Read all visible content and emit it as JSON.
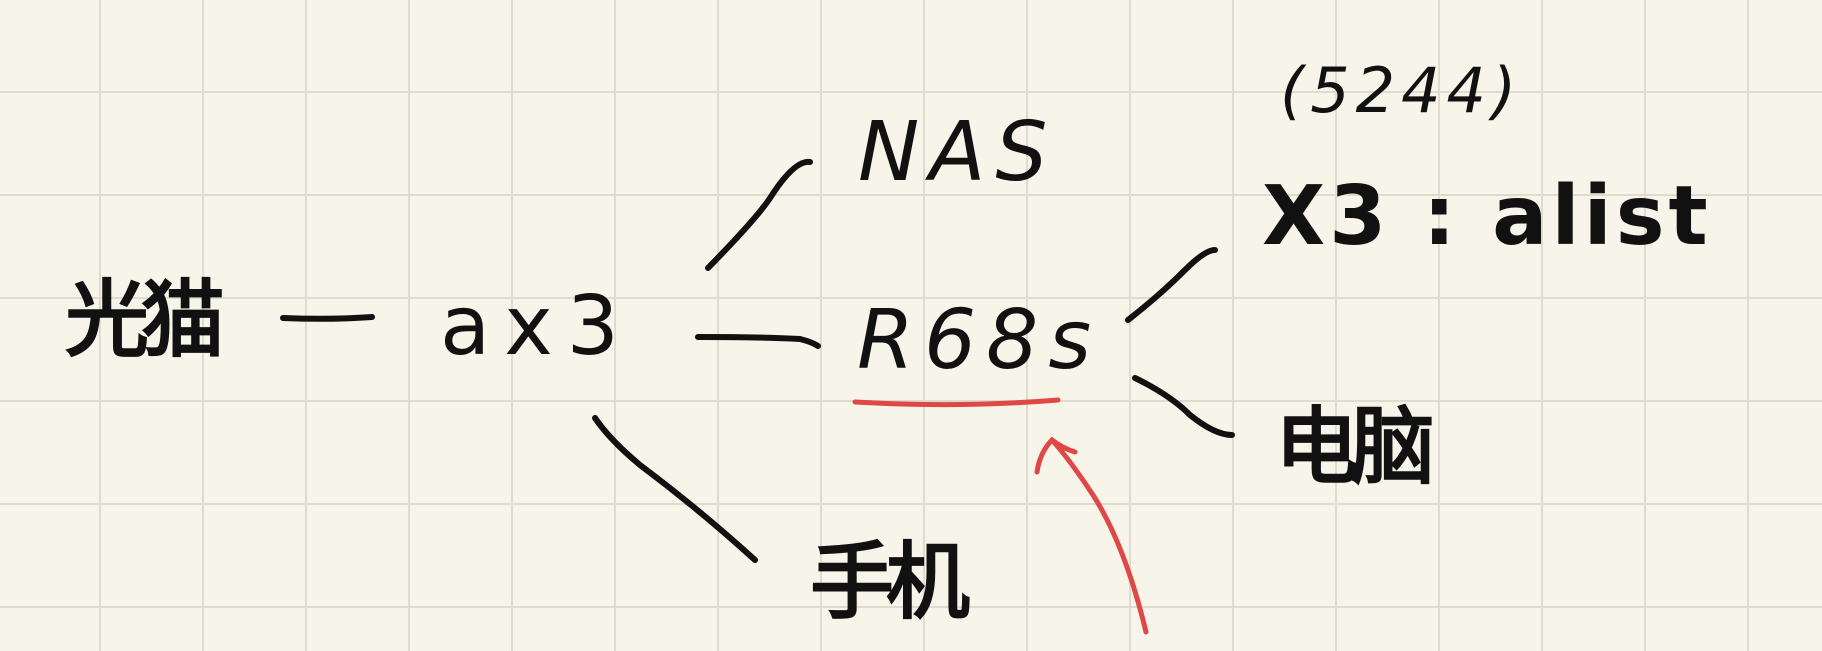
{
  "nodes": {
    "root": "光猫",
    "router": "ax3",
    "nas": "NAS",
    "r68s": "R68s",
    "phone": "手机",
    "port": "(5244)",
    "x3_alist": "X3 : alist",
    "computer": "电脑"
  },
  "colors": {
    "ink": "#111111",
    "highlight": "#e04848",
    "paper": "#f7f5ea",
    "grid": "#dedbcf"
  }
}
